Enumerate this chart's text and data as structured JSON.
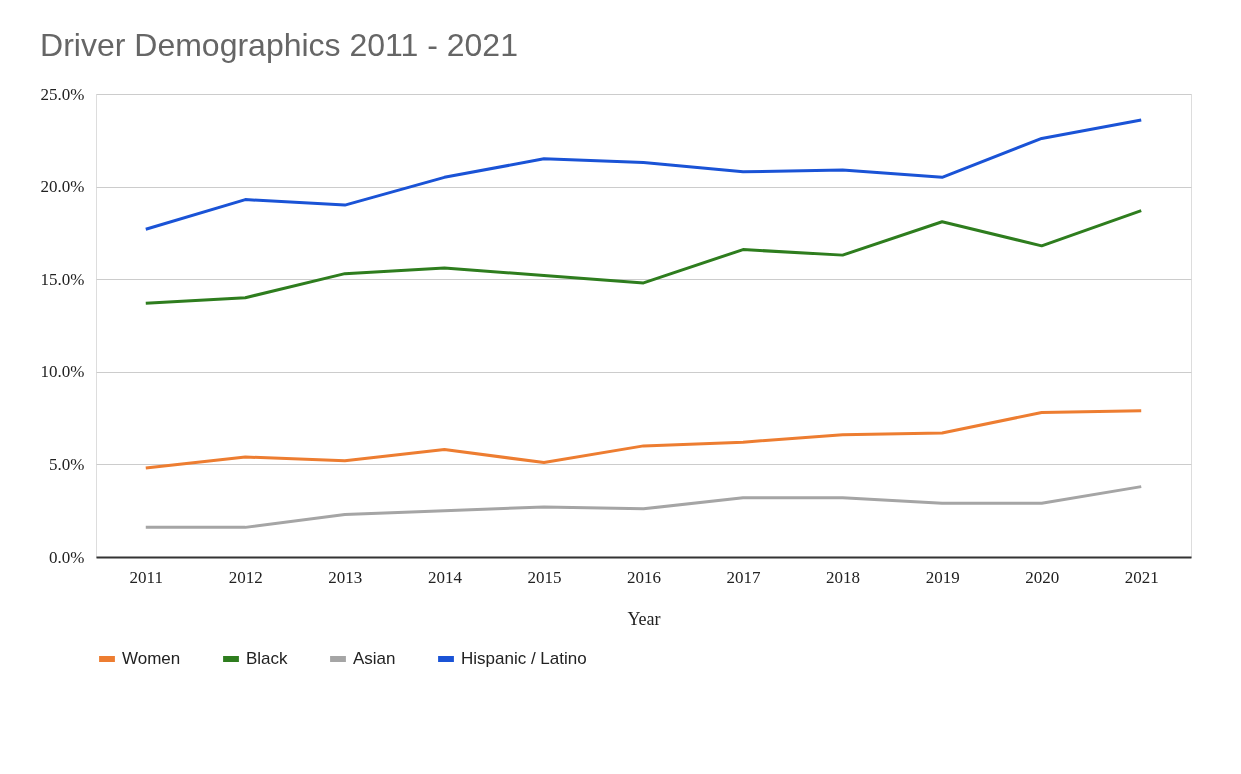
{
  "chart_data": {
    "type": "line",
    "title": "Driver Demographics 2011 - 2021",
    "xlabel": "Year",
    "categories": [
      "2011",
      "2012",
      "2013",
      "2014",
      "2015",
      "2016",
      "2017",
      "2018",
      "2019",
      "2020",
      "2021"
    ],
    "series": [
      {
        "name": "Women",
        "color": "#ed7d31",
        "values": [
          4.8,
          5.4,
          5.2,
          5.8,
          5.1,
          6.0,
          6.2,
          6.6,
          6.7,
          7.8,
          7.9
        ]
      },
      {
        "name": "Black",
        "color": "#2e7d1e",
        "values": [
          13.7,
          14.0,
          15.3,
          15.6,
          15.2,
          14.8,
          16.6,
          16.3,
          18.1,
          16.8,
          18.7
        ]
      },
      {
        "name": "Asian",
        "color": "#a5a5a5",
        "values": [
          1.6,
          1.6,
          2.3,
          2.5,
          2.7,
          2.6,
          3.2,
          3.2,
          2.9,
          2.9,
          3.8
        ]
      },
      {
        "name": "Hispanic / Latino",
        "color": "#1a53d6",
        "values": [
          17.7,
          19.3,
          19.0,
          20.5,
          21.5,
          21.3,
          20.8,
          20.9,
          20.5,
          22.6,
          23.6
        ]
      }
    ],
    "ylim": [
      0,
      25
    ],
    "yticks": [
      {
        "value": 0,
        "label": "0.0%"
      },
      {
        "value": 5,
        "label": "5.0%"
      },
      {
        "value": 10,
        "label": "10.0%"
      },
      {
        "value": 15,
        "label": "15.0%"
      },
      {
        "value": 20,
        "label": "20.0%"
      },
      {
        "value": 25,
        "label": "25.0%"
      }
    ],
    "grid": "y",
    "legend": "bottom",
    "marker": "none",
    "line_style": "solid"
  }
}
